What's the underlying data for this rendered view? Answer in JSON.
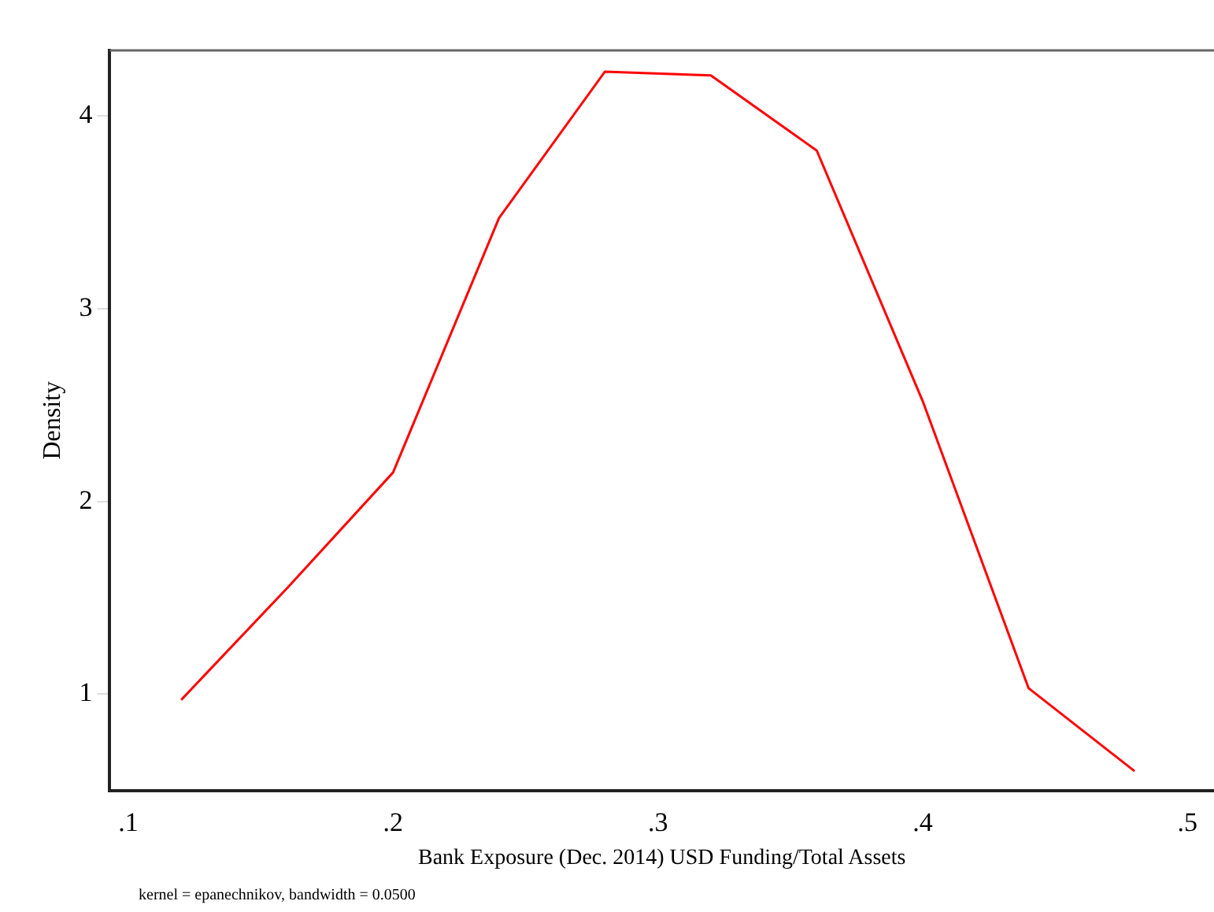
{
  "chart_data": {
    "type": "line",
    "xlabel": "Bank Exposure (Dec. 2014) USD Funding/Total Assets",
    "ylabel": "Density",
    "annotations": [
      "kernel = epanechnikov, bandwidth = 0.0500"
    ],
    "x": [
      0.12,
      0.16,
      0.2,
      0.24,
      0.28,
      0.32,
      0.36,
      0.4,
      0.44,
      0.48
    ],
    "series": [
      {
        "color": "#ff0000",
        "values": [
          0.97,
          1.55,
          2.15,
          3.47,
          4.23,
          4.21,
          3.82,
          2.52,
          1.03,
          0.6
        ]
      }
    ],
    "xlim": [
      0.093,
      0.51
    ],
    "xticks": [
      {
        "value": 0.1,
        "label": ".1"
      },
      {
        "value": 0.2,
        "label": ".2"
      },
      {
        "value": 0.3,
        "label": ".3"
      },
      {
        "value": 0.4,
        "label": ".4"
      },
      {
        "value": 0.5,
        "label": ".5"
      }
    ],
    "ylim": [
      0.5,
      4.34
    ],
    "yticks": [
      1,
      2,
      3,
      4
    ],
    "grid": false,
    "legend": false,
    "marker": "none"
  }
}
